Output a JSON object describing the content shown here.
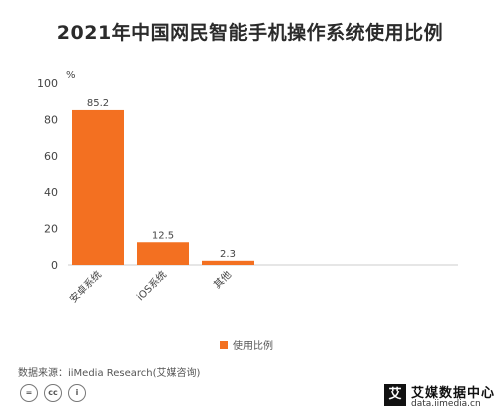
{
  "title": "2021年中国网民智能手机操作系统使用比例",
  "source": "数据来源：iiMedia Research(艾媒咨询)",
  "brand": {
    "name": "艾媒数据中心",
    "url": "data.iimedia.cn",
    "logo_char": "艾"
  },
  "license_icons": [
    "=",
    "cc",
    "i"
  ],
  "colors": {
    "bar": "#F37021",
    "axis": "#cccccc",
    "text": "#333333"
  },
  "chart_data": {
    "type": "bar",
    "unit_label": "%",
    "categories": [
      "安卓系统",
      "iOS系统",
      "其他"
    ],
    "series": [
      {
        "name": "使用比例",
        "values": [
          85.2,
          12.5,
          2.3
        ]
      }
    ],
    "data_labels": [
      "85.2",
      "12.5",
      "2.3"
    ],
    "ylim": [
      0,
      100
    ],
    "yticks": [
      0,
      20,
      40,
      60,
      80,
      100
    ],
    "grid": false,
    "legend": "bottom-center"
  }
}
